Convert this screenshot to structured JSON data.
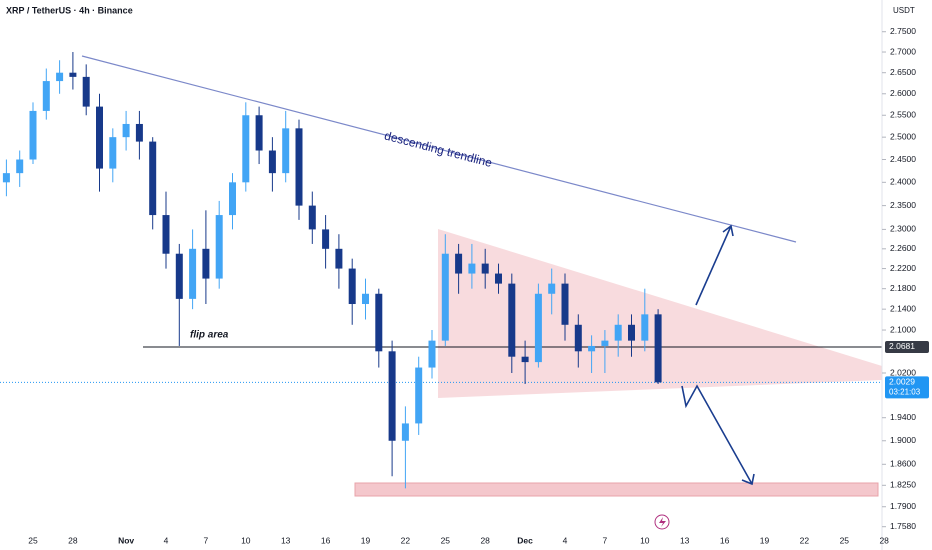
{
  "chart_data": {
    "type": "candlestick",
    "title": "XRP / TetherUS · 4h · Binance",
    "ylabel": "USDT",
    "log_scale": true,
    "up_color": "#42a5f5",
    "down_color": "#17398a",
    "categories": [
      null,
      null,
      "25",
      null,
      null,
      "28",
      null,
      null,
      null,
      "Nov",
      null,
      null,
      "4",
      null,
      null,
      "7",
      null,
      null,
      "10",
      null,
      null,
      "13",
      null,
      null,
      "16",
      null,
      null,
      "19",
      null,
      null,
      "22",
      null,
      null,
      "25",
      null,
      null,
      "28",
      null,
      null,
      "Dec",
      null,
      null,
      "4",
      null,
      null,
      "7",
      null,
      null,
      "10",
      null,
      null,
      "13",
      null,
      null,
      "16",
      null,
      null,
      "19",
      null,
      null,
      "22",
      null,
      null,
      "25",
      null,
      null,
      "28"
    ],
    "open": [
      2.4,
      2.42,
      2.45,
      2.56,
      2.63,
      2.65,
      2.64,
      2.57,
      2.43,
      2.5,
      2.53,
      2.49,
      2.33,
      2.25,
      2.16,
      2.26,
      2.2,
      2.33,
      2.4,
      2.55,
      2.47,
      2.42,
      2.52,
      2.35,
      2.3,
      2.26,
      2.22,
      2.15,
      2.17,
      2.06,
      1.9,
      1.93,
      2.03,
      2.08,
      2.25,
      2.21,
      2.23,
      2.21,
      2.19,
      2.05,
      2.04,
      2.17,
      2.19,
      2.11,
      2.06,
      2.07,
      2.08,
      2.11,
      2.08,
      2.13,
      null,
      null,
      null,
      null,
      null,
      null,
      null,
      null,
      null,
      null,
      null,
      null,
      null,
      null,
      null,
      null,
      null
    ],
    "high": [
      2.45,
      2.47,
      2.58,
      2.66,
      2.68,
      2.7,
      2.67,
      2.6,
      2.52,
      2.56,
      2.56,
      2.5,
      2.38,
      2.27,
      2.3,
      2.34,
      2.36,
      2.42,
      2.58,
      2.57,
      2.5,
      2.56,
      2.54,
      2.38,
      2.33,
      2.29,
      2.24,
      2.2,
      2.18,
      2.08,
      1.96,
      2.05,
      2.1,
      2.29,
      2.27,
      2.27,
      2.26,
      2.23,
      2.21,
      2.08,
      2.19,
      2.22,
      2.21,
      2.13,
      2.09,
      2.1,
      2.13,
      2.13,
      2.18,
      2.14,
      null,
      null,
      null,
      null,
      null,
      null,
      null,
      null,
      null,
      null,
      null,
      null,
      null,
      null,
      null,
      null,
      null
    ],
    "low": [
      2.37,
      2.39,
      2.44,
      2.54,
      2.6,
      2.61,
      2.55,
      2.38,
      2.4,
      2.47,
      2.45,
      2.3,
      2.22,
      2.07,
      2.14,
      2.15,
      2.18,
      2.3,
      2.38,
      2.44,
      2.38,
      2.4,
      2.32,
      2.27,
      2.22,
      2.18,
      2.11,
      2.12,
      2.03,
      1.84,
      1.82,
      1.91,
      2.01,
      2.07,
      2.17,
      2.18,
      2.18,
      2.17,
      2.02,
      2.0,
      2.03,
      2.13,
      2.08,
      2.03,
      2.02,
      2.02,
      2.05,
      2.05,
      2.06,
      2.0,
      null,
      null,
      null,
      null,
      null,
      null,
      null,
      null,
      null,
      null,
      null,
      null,
      null,
      null,
      null,
      null,
      null
    ],
    "close": [
      2.42,
      2.45,
      2.56,
      2.63,
      2.65,
      2.64,
      2.57,
      2.43,
      2.5,
      2.53,
      2.49,
      2.33,
      2.25,
      2.16,
      2.26,
      2.2,
      2.33,
      2.4,
      2.55,
      2.47,
      2.42,
      2.52,
      2.35,
      2.3,
      2.26,
      2.22,
      2.15,
      2.17,
      2.06,
      1.9,
      1.93,
      2.03,
      2.08,
      2.25,
      2.21,
      2.23,
      2.21,
      2.19,
      2.05,
      2.04,
      2.17,
      2.19,
      2.11,
      2.06,
      2.07,
      2.08,
      2.11,
      2.08,
      2.13,
      2.003,
      null,
      null,
      null,
      null,
      null,
      null,
      null,
      null,
      null,
      null,
      null,
      null,
      null,
      null,
      null,
      null,
      null
    ],
    "ylim": [
      1.748,
      2.83
    ],
    "yticks": [
      {
        "value": 2.75,
        "label": "2.7500"
      },
      {
        "value": 2.7,
        "label": "2.7000"
      },
      {
        "value": 2.65,
        "label": "2.6500"
      },
      {
        "value": 2.6,
        "label": "2.6000"
      },
      {
        "value": 2.55,
        "label": "2.5500"
      },
      {
        "value": 2.5,
        "label": "2.5000"
      },
      {
        "value": 2.45,
        "label": "2.4500"
      },
      {
        "value": 2.4,
        "label": "2.4000"
      },
      {
        "value": 2.35,
        "label": "2.3500"
      },
      {
        "value": 2.3,
        "label": "2.3000"
      },
      {
        "value": 2.26,
        "label": "2.2600"
      },
      {
        "value": 2.22,
        "label": "2.2200"
      },
      {
        "value": 2.18,
        "label": "2.1800"
      },
      {
        "value": 2.14,
        "label": "2.1400"
      },
      {
        "value": 2.1,
        "label": "2.1000"
      },
      {
        "value": 2.02,
        "label": "2.0200"
      },
      {
        "value": 1.94,
        "label": "1.9400"
      },
      {
        "value": 1.9,
        "label": "1.9000"
      },
      {
        "value": 1.86,
        "label": "1.8600"
      },
      {
        "value": 1.825,
        "label": "1.8250"
      },
      {
        "value": 1.79,
        "label": "1.7900"
      },
      {
        "value": 1.758,
        "label": "1.7580"
      }
    ],
    "horizontal_line": 2.0681,
    "price_line": 2.0029,
    "countdown": "03:21:03",
    "annotations": [
      "descending trendline",
      "flip area"
    ]
  }
}
